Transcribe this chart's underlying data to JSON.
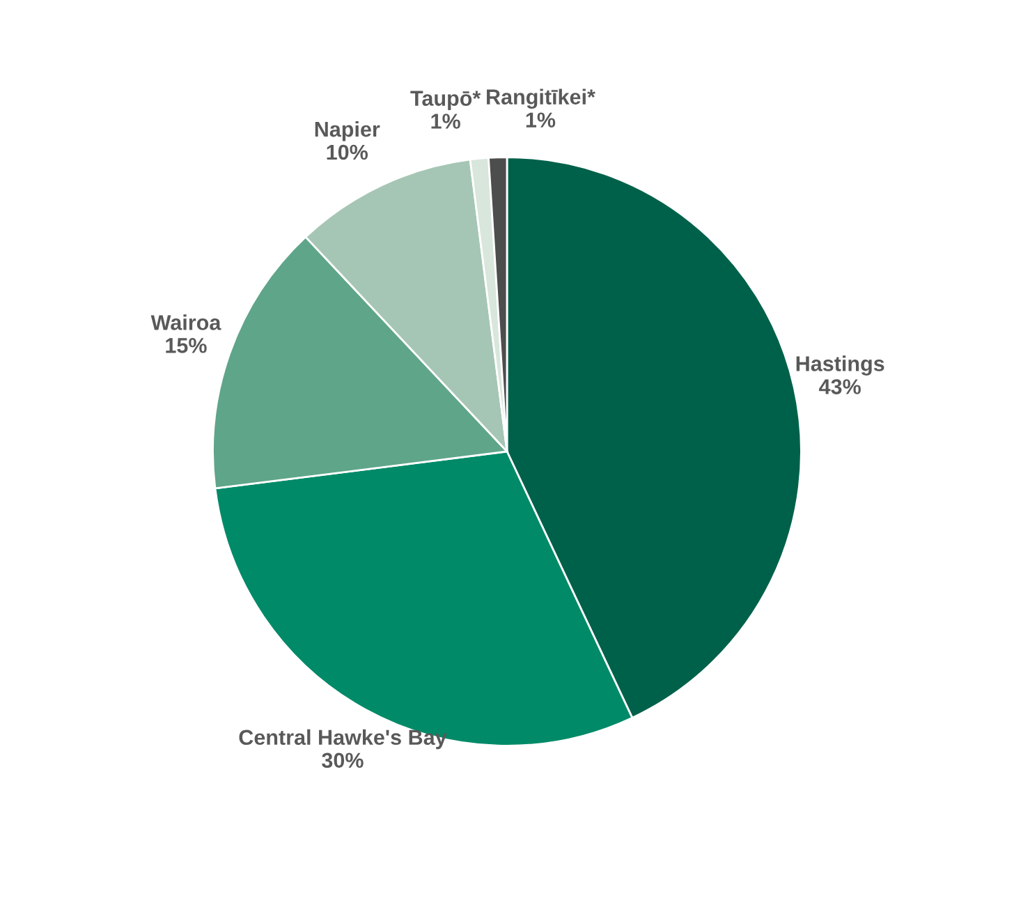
{
  "chart_data": {
    "type": "pie",
    "categories": [
      "Hastings",
      "Central Hawke's Bay",
      "Wairoa",
      "Napier",
      "Taupō*",
      "Rangitīkei*"
    ],
    "values": [
      43,
      30,
      15,
      10,
      1,
      1
    ],
    "value_labels": [
      "43%",
      "30%",
      "15%",
      "10%",
      "1%",
      "1%"
    ],
    "colors": [
      "#00614a",
      "#008a68",
      "#5fa58a",
      "#a6c6b5",
      "#d8e6dc",
      "#4d4d4d"
    ],
    "legend": false
  }
}
